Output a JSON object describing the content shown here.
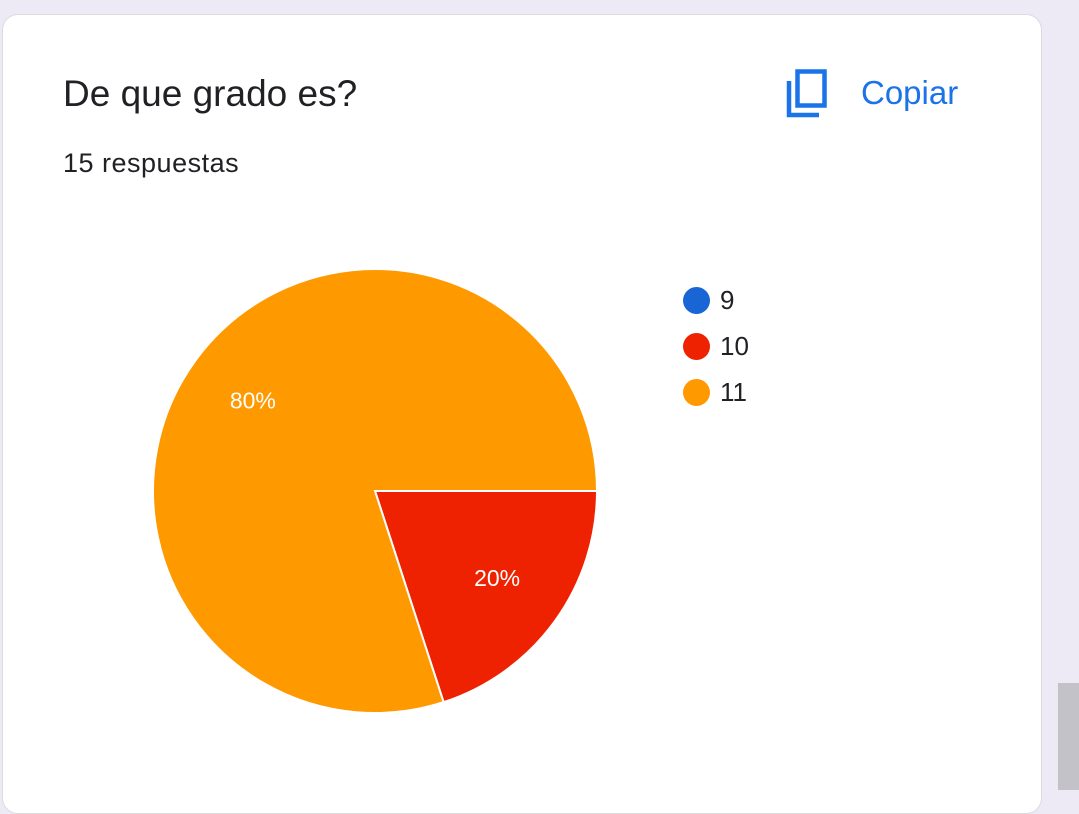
{
  "card": {
    "title": "De que grado es?",
    "subtitle": "15 respuestas",
    "copy_label": "Copiar",
    "copy_icon": "copy-icon"
  },
  "colors": {
    "accent": "#1a73e8",
    "card_background": "#ffffff",
    "page_background": "#ede9f5"
  },
  "chart_data": {
    "type": "pie",
    "categories": [
      "9",
      "10",
      "11"
    ],
    "values": [
      0,
      3,
      12
    ],
    "percent_labels": [
      "",
      "20%",
      "80%"
    ],
    "colors": [
      "#1a65d6",
      "#ee2200",
      "#ff9900"
    ],
    "legend_placement": "right",
    "start_angle_deg": 0,
    "direction": "clockwise"
  }
}
